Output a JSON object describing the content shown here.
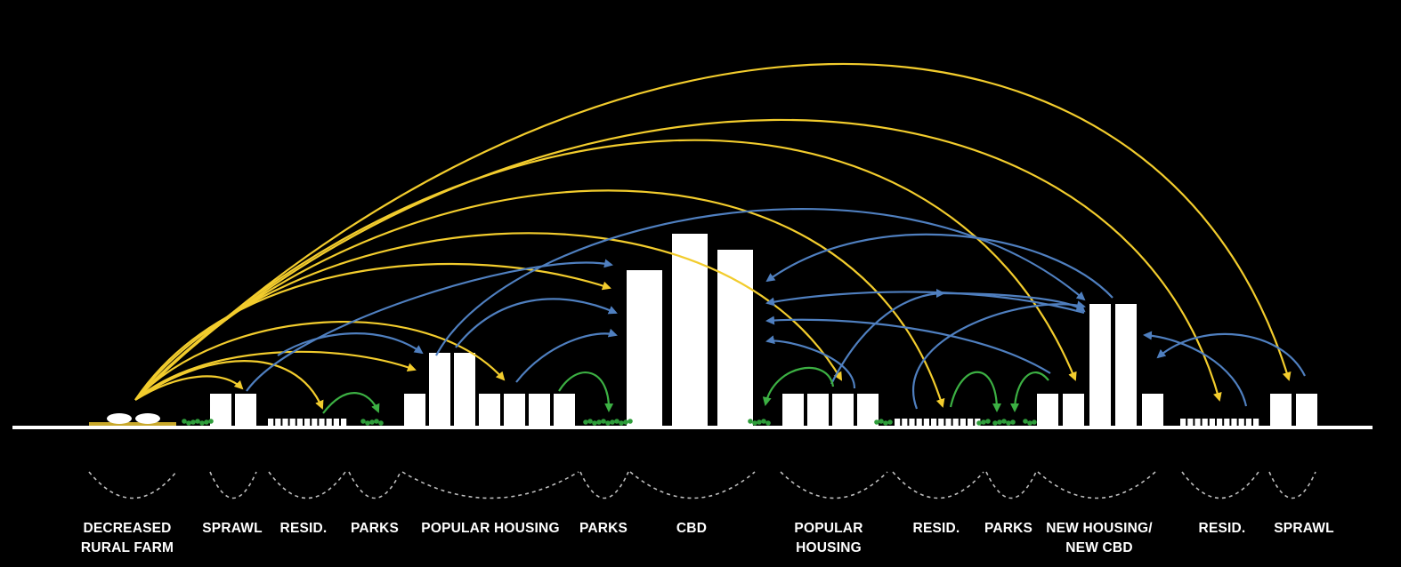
{
  "colors": {
    "background": "#000000",
    "ground": "#ffffff",
    "building": "#ffffff",
    "farm_arrow": "#f2cc2d",
    "urban_arrow": "#4f7fbf",
    "park_arrow": "#3cb043",
    "park_vegetation": "#2e9d3a",
    "farm_base": "#c8a82a",
    "brace": "#bdbdbd"
  },
  "zones": [
    {
      "id": "rural-farm",
      "lines": [
        "DECREASED",
        "RURAL FARM"
      ]
    },
    {
      "id": "sprawl-left",
      "lines": [
        "SPRAWL"
      ]
    },
    {
      "id": "resid-left",
      "lines": [
        "RESID."
      ]
    },
    {
      "id": "parks-left",
      "lines": [
        "PARKS"
      ]
    },
    {
      "id": "popular-housing-left",
      "lines": [
        "POPULAR HOUSING"
      ]
    },
    {
      "id": "parks-center",
      "lines": [
        "PARKS"
      ]
    },
    {
      "id": "cbd",
      "lines": [
        "CBD"
      ]
    },
    {
      "id": "popular-housing-right",
      "lines": [
        "POPULAR",
        "HOUSING"
      ]
    },
    {
      "id": "resid-mid",
      "lines": [
        "RESID."
      ]
    },
    {
      "id": "parks-right",
      "lines": [
        "PARKS"
      ]
    },
    {
      "id": "new-housing-cbd",
      "lines": [
        "NEW HOUSING/",
        "NEW CBD"
      ]
    },
    {
      "id": "resid-right",
      "lines": [
        "RESID."
      ]
    },
    {
      "id": "sprawl-right",
      "lines": [
        "SPRAWL"
      ]
    }
  ]
}
